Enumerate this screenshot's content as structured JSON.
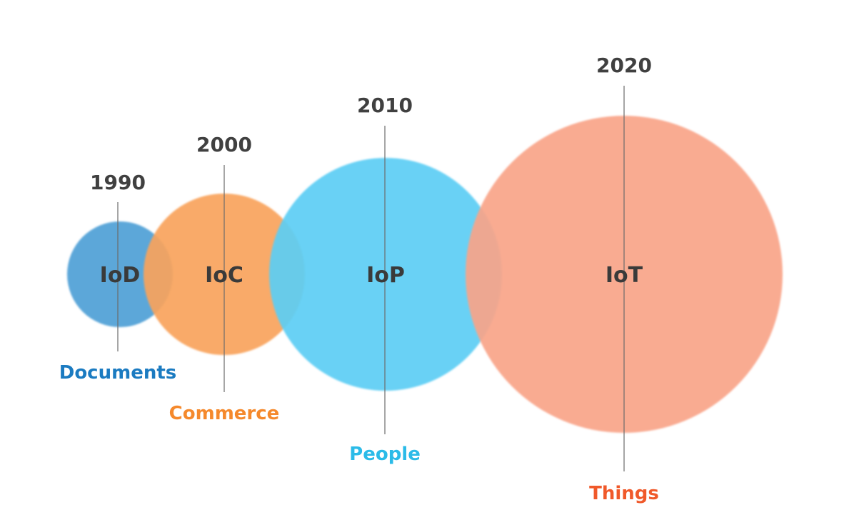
{
  "eras": [
    {
      "year": "1990",
      "abbr": "IoD",
      "label": "Documents",
      "fill": "#4f9fd6",
      "label_color": "#1b7bc1"
    },
    {
      "year": "2000",
      "abbr": "IoC",
      "label": "Commerce",
      "fill": "#f9a35c",
      "label_color": "#f5892c"
    },
    {
      "year": "2010",
      "abbr": "IoP",
      "label": "People",
      "fill": "#5bcdf4",
      "label_color": "#2bbbe8"
    },
    {
      "year": "2020",
      "abbr": "IoT",
      "label": "Things",
      "fill": "#f9a488",
      "label_color": "#f0592a"
    }
  ]
}
